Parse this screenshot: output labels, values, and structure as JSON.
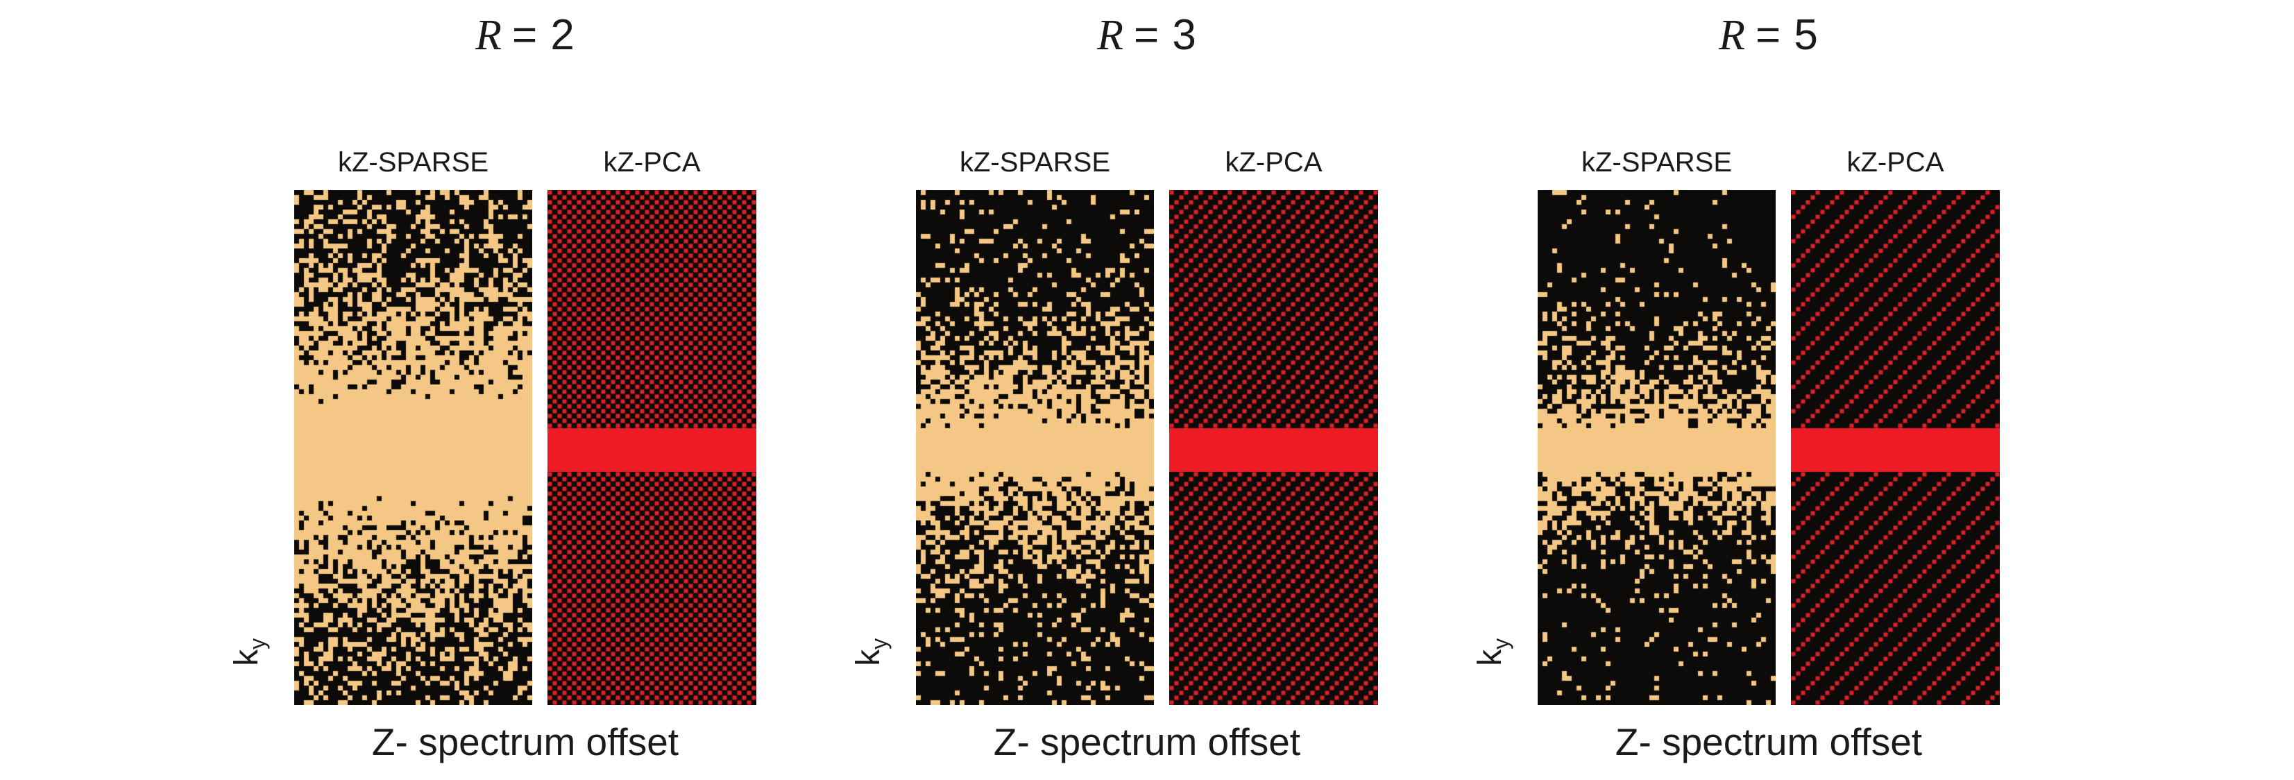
{
  "page": {
    "background": "#ffffff",
    "text_color": "#1a1a1a"
  },
  "figure": {
    "xlabel": "Z- spectrum offset",
    "ylabel_base": "k",
    "ylabel_sub": "y",
    "colors": {
      "mask_bg": "#0d0b09",
      "sparse_dot": "#f4c784",
      "pca_dot": "#e02027",
      "band_red": "#ed1c24"
    },
    "masks": {
      "grid": {
        "cell": 7,
        "rows": 106,
        "sparse_cols": 49,
        "pca_cols": 43,
        "band_rows": 9
      },
      "description": "Left mask per panel: variable-density random undersampling (kZ-SPARSE, tan dots, fully sampled central ky band). Right mask per panel: regular lattice undersampling (kZ-PCA, red diagonal/checkerboard pattern, fully sampled central ky band)."
    },
    "panels": [
      {
        "id": "R2",
        "title_var": "R",
        "title_eq": "= 2",
        "sparse_label": "kZ-SPARSE",
        "pca_label": "kZ-PCA",
        "R": 2,
        "sparse_base": 0.22,
        "sparse_gamma": 1.6,
        "seed": 2025
      },
      {
        "id": "R3",
        "title_var": "R",
        "title_eq": "= 3",
        "sparse_label": "kZ-SPARSE",
        "pca_label": "kZ-PCA",
        "R": 3,
        "sparse_base": 0.1,
        "sparse_gamma": 2.4,
        "seed": 77
      },
      {
        "id": "R5",
        "title_var": "R",
        "title_eq": "= 5",
        "sparse_label": "kZ-SPARSE",
        "pca_label": "kZ-PCA",
        "R": 5,
        "sparse_base": 0.05,
        "sparse_gamma": 3.5,
        "seed": 13
      }
    ]
  }
}
